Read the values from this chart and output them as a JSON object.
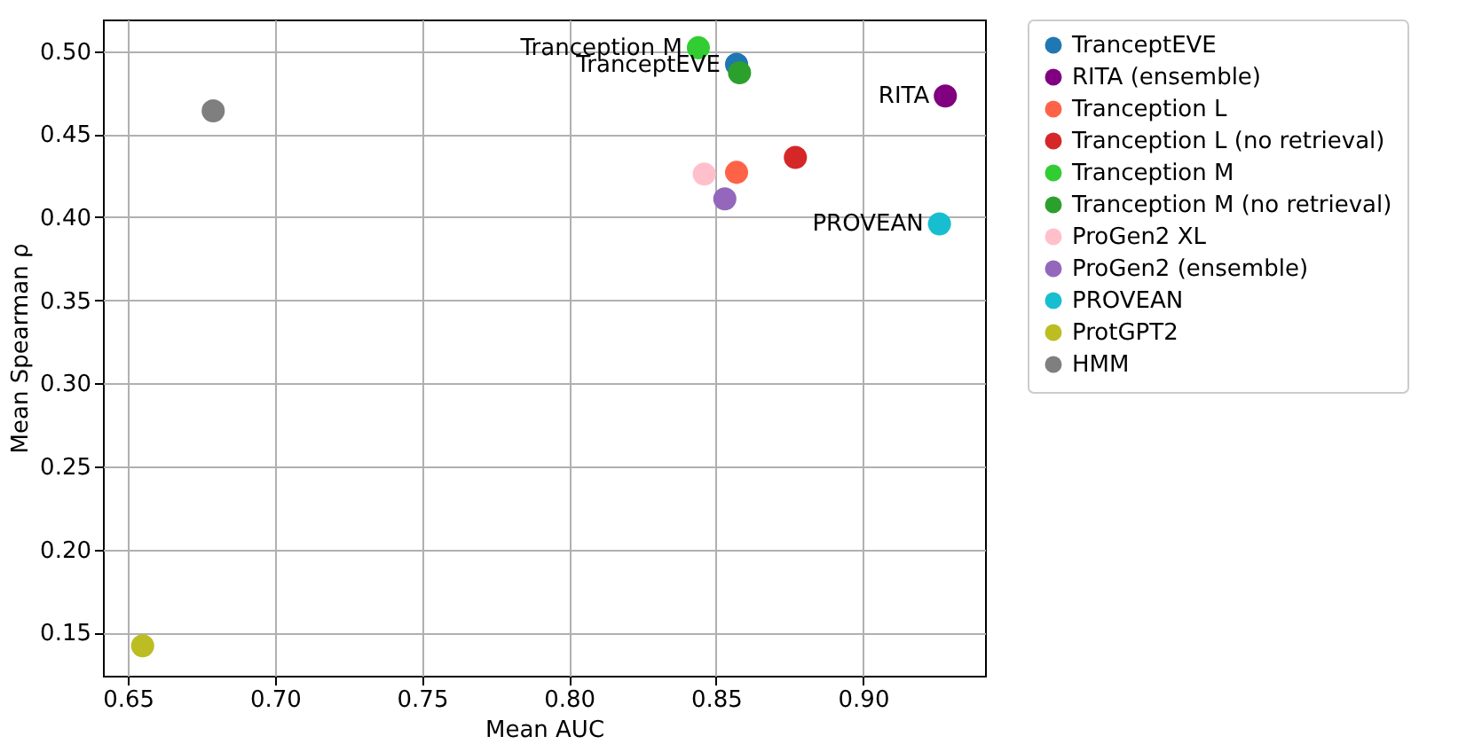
{
  "chart_data": {
    "type": "scatter",
    "xlabel": "Mean AUC",
    "ylabel": "Mean Spearman ρ",
    "xlim": [
      0.6415,
      0.9415
    ],
    "ylim": [
      0.124,
      0.519
    ],
    "xticks": [
      0.65,
      {
        "value": 0.7,
        "label": "0.70"
      },
      0.75,
      {
        "value": 0.8,
        "label": "0.80"
      },
      0.85,
      {
        "value": 0.9,
        "label": "0.90"
      }
    ],
    "yticks": [
      0.15,
      {
        "value": 0.2,
        "label": "0.20"
      },
      0.25,
      {
        "value": 0.3,
        "label": "0.30"
      },
      0.35,
      {
        "value": 0.4,
        "label": "0.40"
      },
      0.45,
      {
        "value": 0.5,
        "label": "0.50"
      }
    ],
    "grid": true,
    "legend": "right",
    "marker": "circle",
    "series": [
      {
        "name": "TranceptEVE",
        "color": "#1f77b4",
        "x": [
          0.857
        ],
        "values": [
          0.492
        ]
      },
      {
        "name": "RITA (ensemble)",
        "color": "#800080",
        "x": [
          0.928
        ],
        "values": [
          0.473
        ]
      },
      {
        "name": "Tranception L",
        "color": "#ff6347",
        "x": [
          0.857
        ],
        "values": [
          0.427
        ]
      },
      {
        "name": "Tranception L (no retrieval)",
        "color": "#d62728",
        "x": [
          0.877
        ],
        "values": [
          0.436
        ]
      },
      {
        "name": "Tranception M",
        "color": "#32cd32",
        "x": [
          0.844
        ],
        "values": [
          0.502
        ]
      },
      {
        "name": "Tranception M (no retrieval)",
        "color": "#2ca02c",
        "x": [
          0.858
        ],
        "values": [
          0.487
        ]
      },
      {
        "name": "ProGen2 XL",
        "color": "#ffc0cb",
        "x": [
          0.846
        ],
        "values": [
          0.426
        ]
      },
      {
        "name": "ProGen2 (ensemble)",
        "color": "#9467bd",
        "x": [
          0.853
        ],
        "values": [
          0.411
        ]
      },
      {
        "name": "PROVEAN",
        "color": "#17becf",
        "x": [
          0.926
        ],
        "values": [
          0.396
        ]
      },
      {
        "name": "ProtGPT2",
        "color": "#bcbd22",
        "x": [
          0.655
        ],
        "values": [
          0.142
        ]
      },
      {
        "name": "HMM",
        "color": "#7f7f7f",
        "x": [
          0.679
        ],
        "values": [
          0.464
        ]
      }
    ],
    "annotations": [
      {
        "text": "Tranception M",
        "x": 0.844,
        "y": 0.502
      },
      {
        "text": "TranceptEVE",
        "x": 0.857,
        "y": 0.492
      },
      {
        "text": "RITA",
        "x": 0.928,
        "y": 0.473
      },
      {
        "text": "PROVEAN",
        "x": 0.926,
        "y": 0.396
      }
    ]
  }
}
